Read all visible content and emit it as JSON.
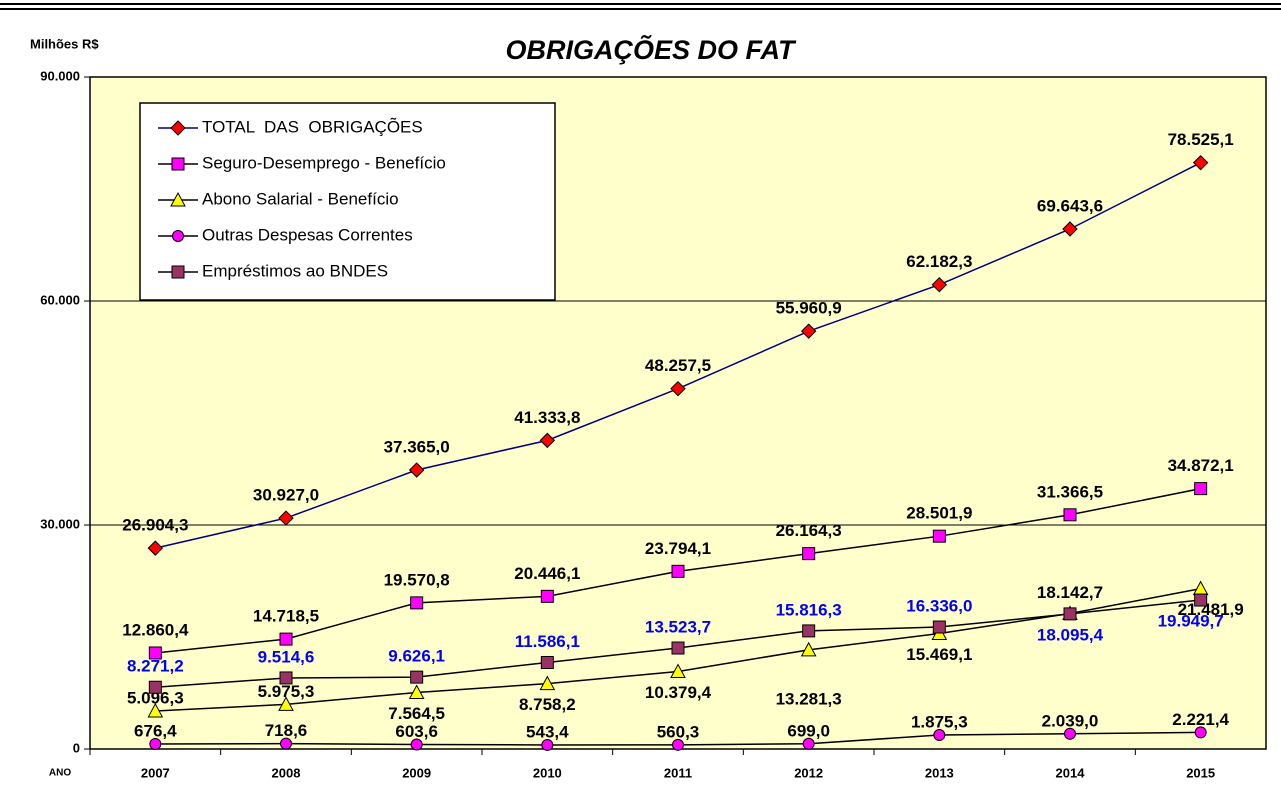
{
  "chart_data": {
    "type": "line",
    "title": "OBRIGAÇÕES DO FAT",
    "y_label": "Milhões R$",
    "x_label": "ANO",
    "categories": [
      "2007",
      "2008",
      "2009",
      "2010",
      "2011",
      "2012",
      "2013",
      "2014",
      "2015"
    ],
    "ylim": [
      0,
      90000
    ],
    "yticks": [
      0,
      {
        "value": 30000,
        "label": "30.000"
      },
      {
        "value": 60000,
        "label": "60.000"
      },
      {
        "value": 90000,
        "label": "90.000"
      }
    ],
    "grid": true,
    "legend": "upper left",
    "background": "#ffffcc",
    "series": [
      {
        "name": "TOTAL  DAS  OBRIGAÇÕES",
        "color": "#ff0000",
        "line_color": "#000080",
        "marker": "diamond",
        "label_color": "#000000",
        "values": [
          26904.3,
          30927.0,
          37365.0,
          41333.8,
          48257.5,
          55960.9,
          62182.3,
          69643.6,
          78525.1
        ],
        "value_labels": [
          "26.904,3",
          "30.927,0",
          "37.365,0",
          "41.333,8",
          "48.257,5",
          "55.960,9",
          "62.182,3",
          "69.643,6",
          "78.525,1"
        ]
      },
      {
        "name": "Seguro-Desemprego - Benefício",
        "color": "#ff00ff",
        "line_color": "#000000",
        "marker": "square",
        "label_color": "#000000",
        "values": [
          12860.4,
          14718.5,
          19570.8,
          20446.1,
          23794.1,
          26164.3,
          28501.9,
          31366.5,
          34872.1
        ],
        "value_labels": [
          "12.860,4",
          "14.718,5",
          "19.570,8",
          "20.446,1",
          "23.794,1",
          "26.164,3",
          "28.501,9",
          "31.366,5",
          "34.872,1"
        ]
      },
      {
        "name": "Abono Salarial - Benefício",
        "color": "#ffff00",
        "line_color": "#000000",
        "marker": "triangle",
        "label_color": "#000000",
        "values": [
          5096.3,
          5975.3,
          7564.5,
          8758.2,
          10379.4,
          13281.3,
          15469.1,
          18142.7,
          21481.9
        ],
        "value_labels": [
          "5.096,3",
          "5.975,3",
          "7.564,5",
          "8.758,2",
          "10.379,4",
          "13.281,3",
          "15.469,1",
          "18.142,7",
          "21.481,9"
        ]
      },
      {
        "name": "Outras Despesas Correntes",
        "color": "#ff00ff",
        "line_color": "#000000",
        "marker": "circle",
        "label_color": "#000000",
        "values": [
          676.4,
          718.6,
          603.6,
          543.4,
          560.3,
          699.0,
          1875.3,
          2039.0,
          2221.4
        ],
        "value_labels": [
          "676,4",
          "718,6",
          "603,6",
          "543,4",
          "560,3",
          "699,0",
          "1.875,3",
          "2.039,0",
          "2.221,4"
        ]
      },
      {
        "name": "Empréstimos ao BNDES",
        "color": "#993366",
        "line_color": "#000000",
        "marker": "square",
        "label_color": "#0000ff",
        "values": [
          8271.2,
          9514.6,
          9626.1,
          11586.1,
          13523.7,
          15816.3,
          16336.0,
          18095.4,
          19949.7
        ],
        "value_labels": [
          "8.271,2",
          "9.514,6",
          "9.626,1",
          "11.586,1",
          "13.523,7",
          "15.816,3",
          "16.336,0",
          "18.095,4",
          "19.949,7"
        ]
      }
    ]
  }
}
